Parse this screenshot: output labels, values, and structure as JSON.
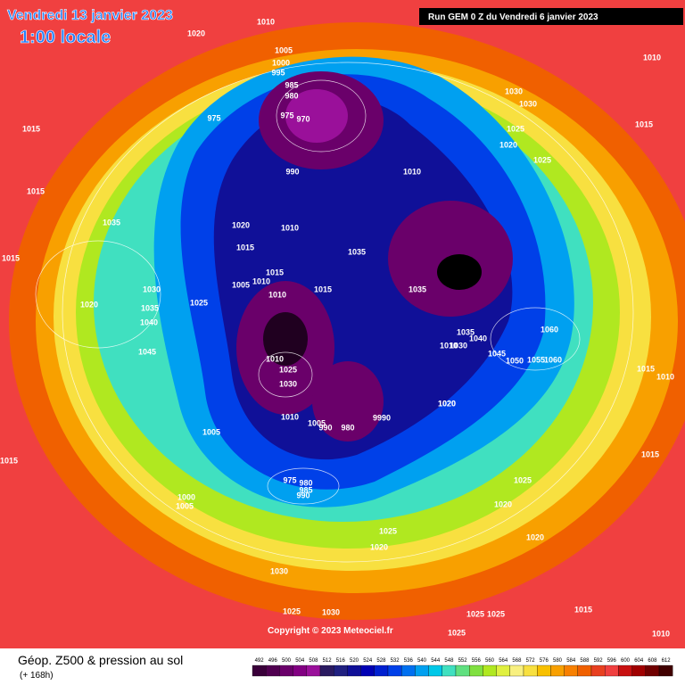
{
  "header": {
    "date": "Vendredi 13 janvier 2023",
    "time": "1:00 locale",
    "run": "Run GEM 0 Z du Vendredi 6 janvier 2023"
  },
  "map": {
    "isobar_labels": [
      "1010",
      "1020",
      "1005",
      "1000",
      "995",
      "985",
      "980",
      "975",
      "975",
      "970",
      "1015",
      "990",
      "1010",
      "1030",
      "1030",
      "1025",
      "1020",
      "1025",
      "1015",
      "1010",
      "1015",
      "1035",
      "1020",
      "1010",
      "1035",
      "1015",
      "1015",
      "1030",
      "1020",
      "1035",
      "1040",
      "1025",
      "1015",
      "1010",
      "1005",
      "1010",
      "1015",
      "1035",
      "1060",
      "1035",
      "1040",
      "1045",
      "1030",
      "1010",
      "1050",
      "1055",
      "1060",
      "1020",
      "1045",
      "1015",
      "1010",
      "1010",
      "1025",
      "1030",
      "1010",
      "1005",
      "990",
      "980",
      "9990",
      "1020",
      "1005",
      "1015",
      "1015",
      "975",
      "980",
      "985",
      "990",
      "1025",
      "1020",
      "1000",
      "1005",
      "1025",
      "1020",
      "1020",
      "1030",
      "1025",
      "1030",
      "1025",
      "1025",
      "1015",
      "1025",
      "1010"
    ],
    "copyright": "Copyright © 2023 Meteociel.fr"
  },
  "footer": {
    "title": "Géop. Z500 & pression au sol",
    "lead": "(+ 168h)",
    "scale": {
      "values": [
        492,
        496,
        500,
        504,
        508,
        512,
        516,
        520,
        524,
        528,
        532,
        536,
        540,
        544,
        548,
        552,
        556,
        560,
        564,
        568,
        572,
        576,
        580,
        584,
        588,
        592,
        596,
        600,
        604,
        608,
        612
      ],
      "colors": [
        "#3a003a",
        "#500050",
        "#6a006a",
        "#820082",
        "#9a109a",
        "#2a1a60",
        "#202080",
        "#101098",
        "#0000b4",
        "#0020d0",
        "#0040e8",
        "#0070f0",
        "#00a0f0",
        "#00c8e8",
        "#40e0c0",
        "#60e080",
        "#80e040",
        "#b0e820",
        "#e0f040",
        "#f8f080",
        "#f8e040",
        "#f8c000",
        "#f8a000",
        "#f88000",
        "#f06000",
        "#e84020",
        "#f04040",
        "#c81010",
        "#a00000",
        "#700000",
        "#400000"
      ]
    }
  }
}
